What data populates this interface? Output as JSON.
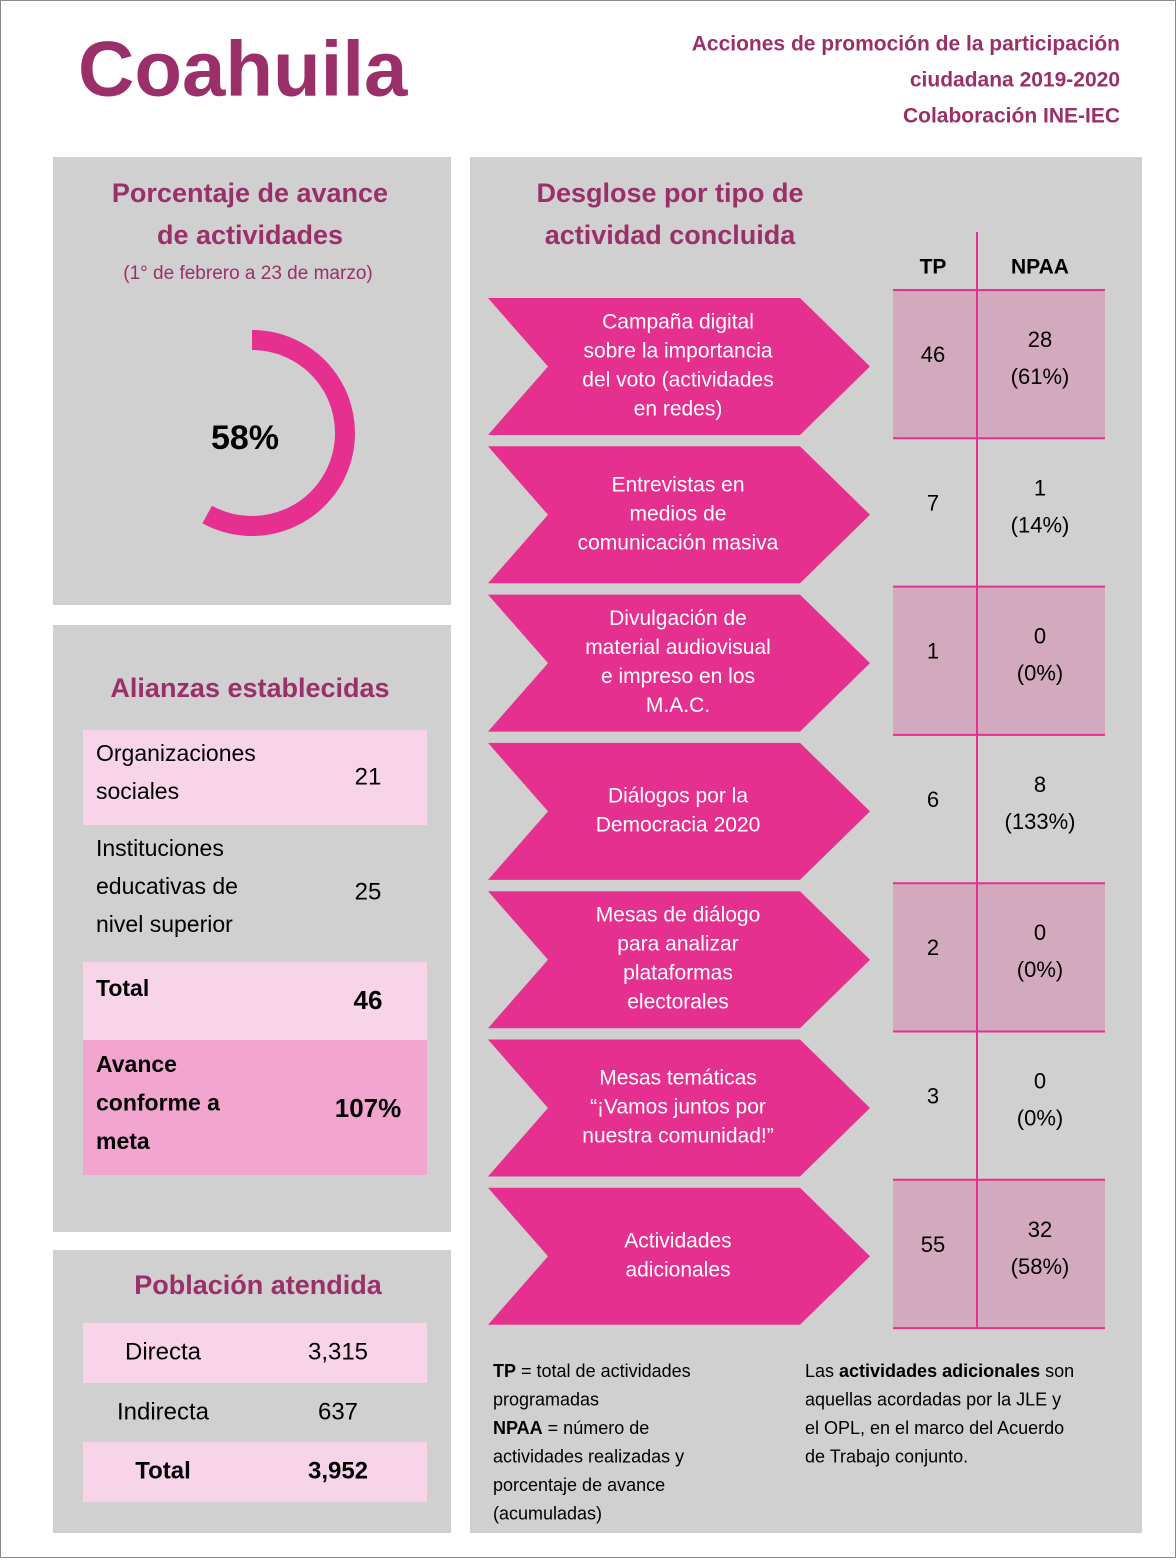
{
  "header": {
    "title": "Coahuila",
    "subtitle": [
      "Acciones de promoción de la participación",
      "ciudadana 2019-2020",
      "Colaboración INE-IEC"
    ]
  },
  "progress": {
    "title": [
      "Porcentaje de avance",
      "de actividades"
    ],
    "period": "(1° de febrero a 23 de marzo)",
    "value": 58,
    "label": "58%"
  },
  "alliances": {
    "title": "Alianzas establecidas",
    "rows": [
      {
        "label": [
          "Organizaciones",
          "sociales"
        ],
        "value": "21"
      },
      {
        "label": [
          "Instituciones",
          "educativas de",
          "nivel superior"
        ],
        "value": "25"
      },
      {
        "label": [
          "Total"
        ],
        "value": "46"
      },
      {
        "label": [
          "Avance",
          "conforme a",
          "meta"
        ],
        "value": "107%"
      }
    ]
  },
  "population": {
    "title": "Población atendida",
    "rows": [
      [
        "Directa",
        "3,315"
      ],
      [
        "Indirecta",
        "637"
      ],
      [
        "Total",
        "3,952"
      ]
    ]
  },
  "breakdown": {
    "title": [
      "Desglose por tipo de",
      "actividad concluida"
    ],
    "columns": [
      "TP",
      "NPAA"
    ],
    "rows": [
      {
        "activity": [
          "Campaña digital",
          "sobre la importancia",
          "del voto (actividades",
          "en redes)"
        ],
        "tp": "46",
        "npaa": [
          "28",
          "(61%)"
        ]
      },
      {
        "activity": [
          "Entrevistas en",
          "medios de",
          "comunicación masiva"
        ],
        "tp": "7",
        "npaa": [
          "1",
          "(14%)"
        ]
      },
      {
        "activity": [
          "Divulgación de",
          "material audiovisual",
          "e impreso en los",
          "M.A.C."
        ],
        "tp": "1",
        "npaa": [
          "0",
          "(0%)"
        ]
      },
      {
        "activity": [
          "Diálogos por la",
          "Democracia 2020"
        ],
        "tp": "6",
        "npaa": [
          "8",
          "(133%)"
        ]
      },
      {
        "activity": [
          "Mesas de diálogo",
          "para analizar",
          "plataformas",
          "electorales"
        ],
        "tp": "2",
        "npaa": [
          "0",
          "(0%)"
        ]
      },
      {
        "activity": [
          "Mesas temáticas",
          "“¡Vamos juntos por",
          "nuestra comunidad!”"
        ],
        "tp": "3",
        "npaa": [
          "0",
          "(0%)"
        ]
      },
      {
        "activity": [
          "Actividades",
          "adicionales"
        ],
        "tp": "55",
        "npaa": [
          "32",
          "(58%)"
        ]
      }
    ]
  },
  "notes": {
    "left": [
      [
        {
          "text": "TP",
          "bold": true
        },
        {
          "text": " = total de actividades"
        }
      ],
      [
        {
          "text": "programadas"
        }
      ],
      [
        {
          "text": "NPAA",
          "bold": true
        },
        {
          "text": " = número de"
        }
      ],
      [
        {
          "text": "actividades realizadas y"
        }
      ],
      [
        {
          "text": "porcentaje de avance"
        }
      ],
      [
        {
          "text": "(acumuladas)"
        }
      ]
    ],
    "right": [
      [
        {
          "text": "Las "
        },
        {
          "text": "actividades adicionales",
          "bold": true
        },
        {
          "text": " son"
        }
      ],
      [
        {
          "text": "aquellas acordadas por la JLE y"
        }
      ],
      [
        {
          "text": "el OPL, en el marco del Acuerdo"
        }
      ],
      [
        {
          "text": "de Trabajo conjunto."
        }
      ]
    ]
  }
}
